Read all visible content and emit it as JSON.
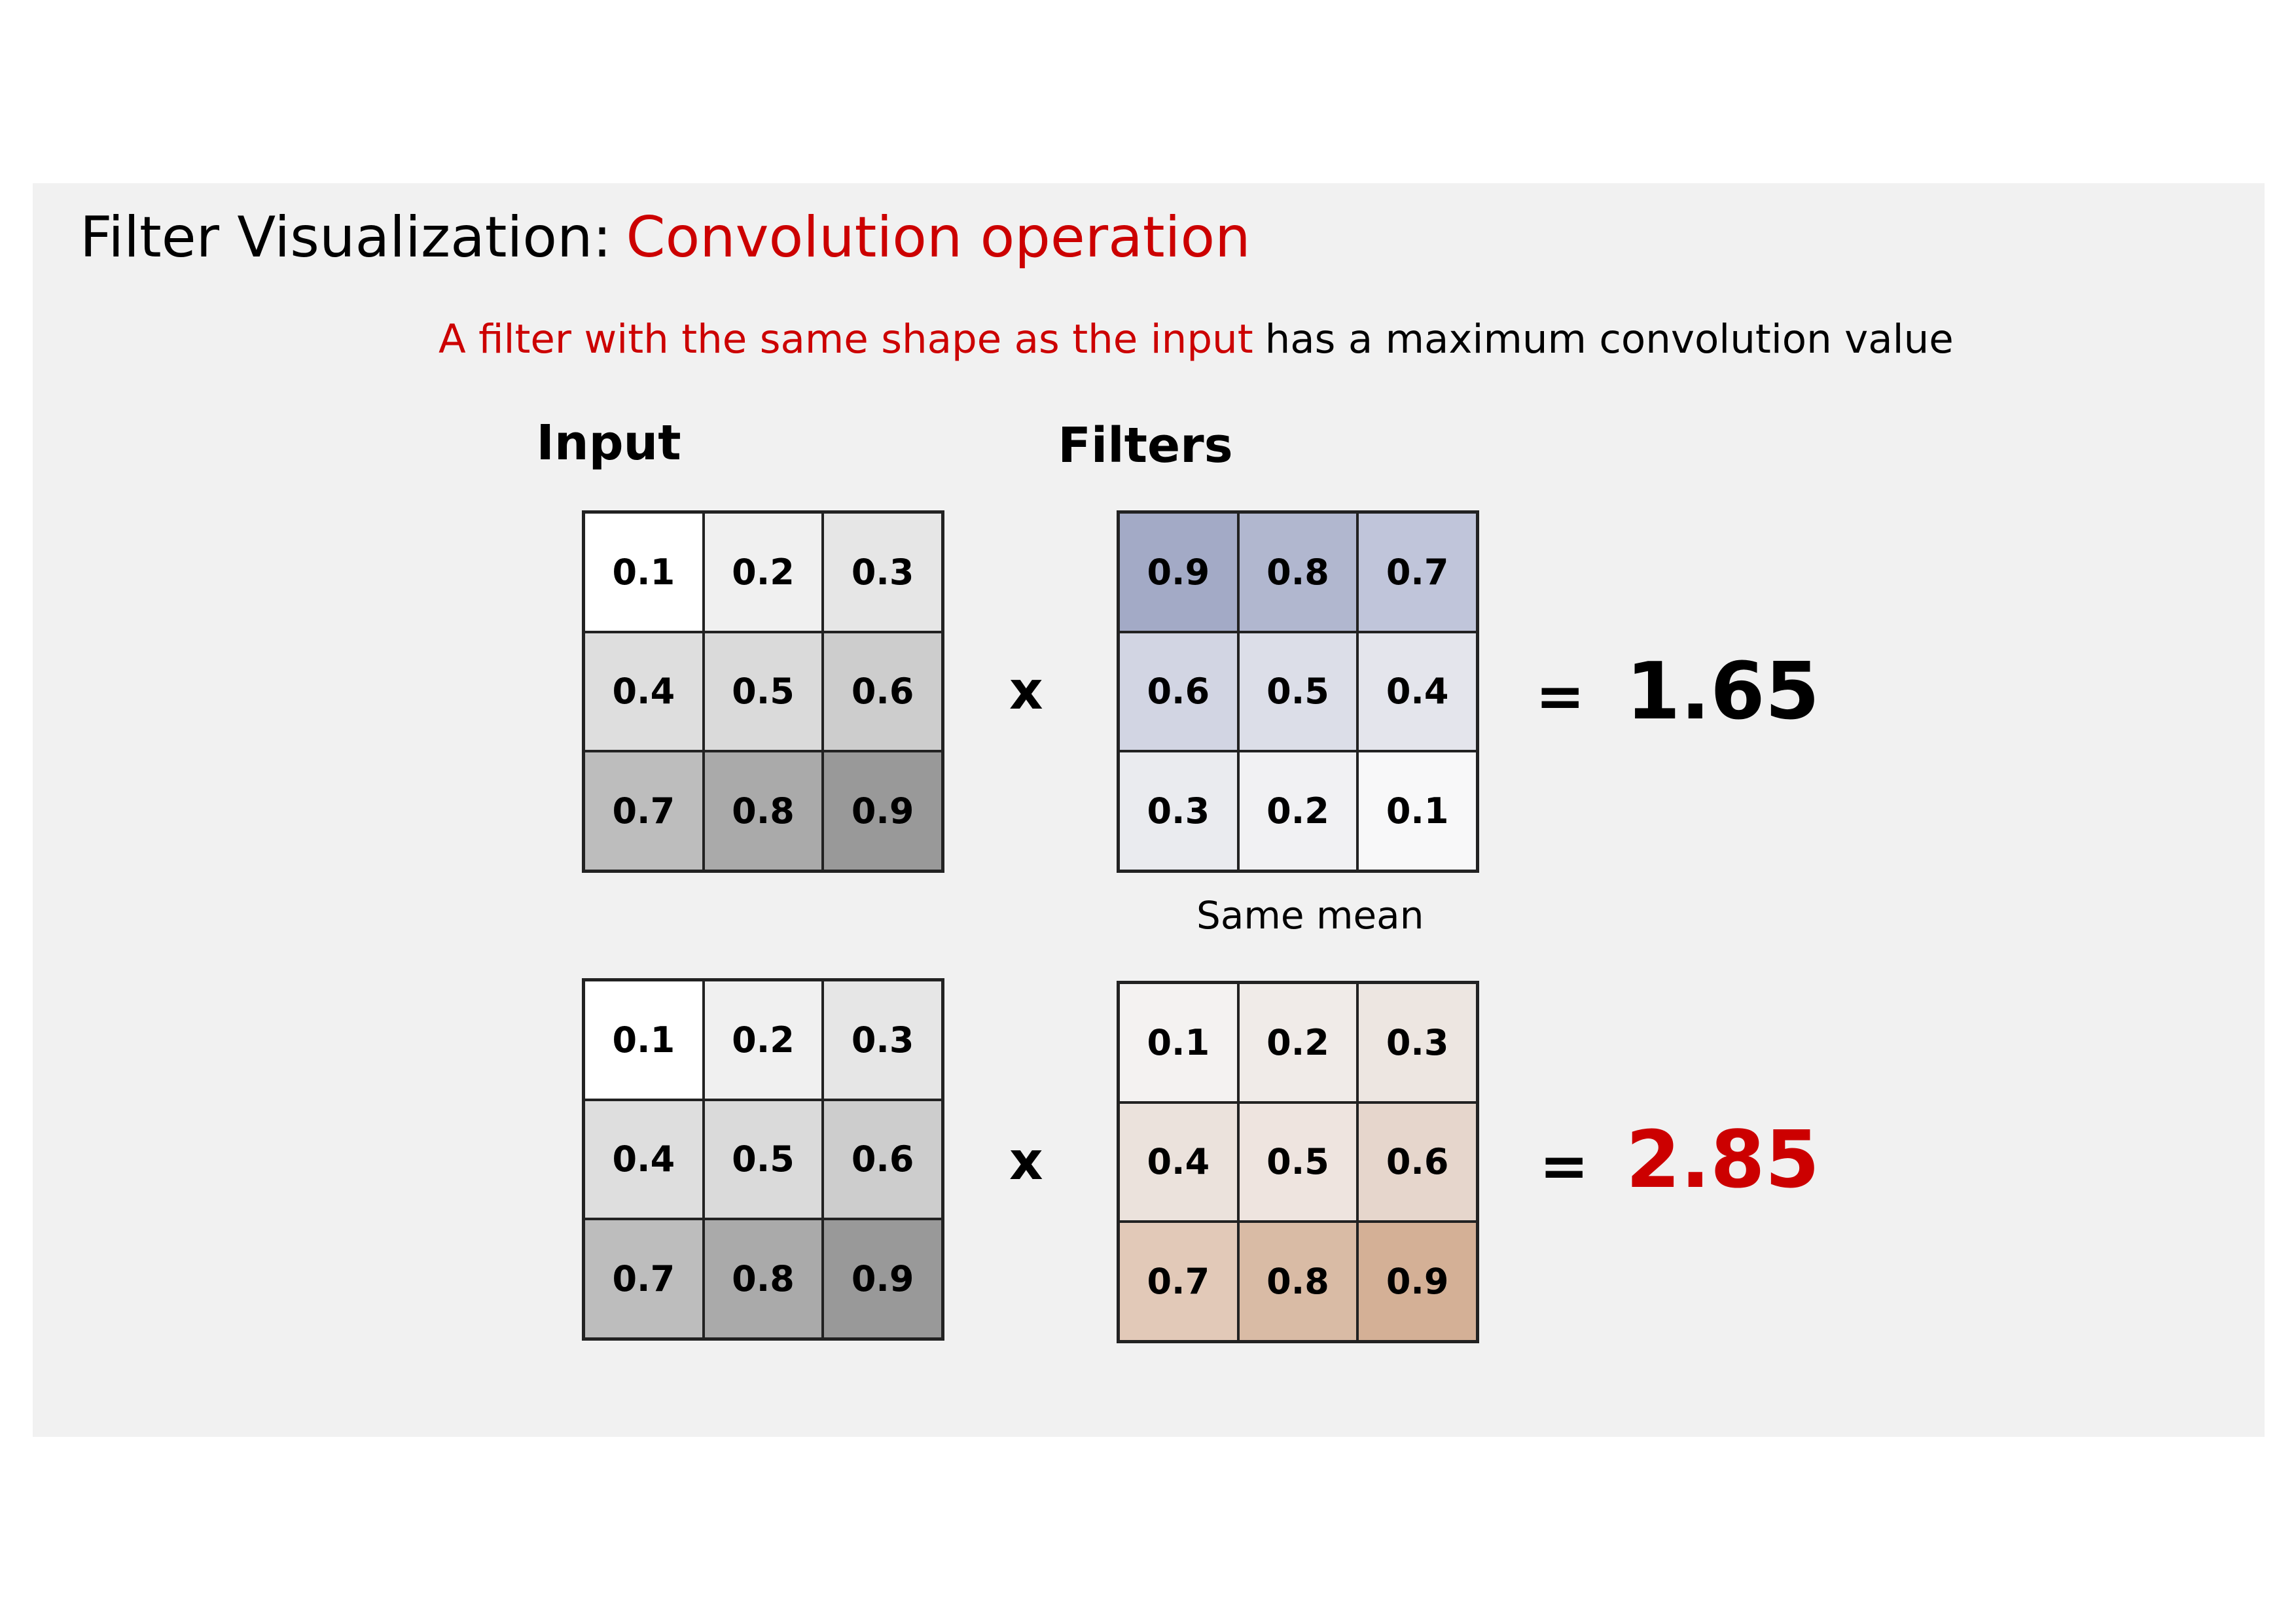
{
  "title": {
    "part1": "Filter Visualization:",
    "part2": "Convolution operation"
  },
  "subtitle": {
    "highlight": "A filter with the same shape as the input",
    "rest": "has a maximum convolution value"
  },
  "headings": {
    "input": "Input",
    "filters": "Filters"
  },
  "operator": "x",
  "equals": "=",
  "between_label": "Same mean",
  "colors": {
    "accent": "#cc0000",
    "panel": "#f1f1f1"
  },
  "rows": [
    {
      "input": {
        "values": [
          "0.1",
          "0.2",
          "0.3",
          "0.4",
          "0.5",
          "0.6",
          "0.7",
          "0.8",
          "0.9"
        ],
        "colors": [
          "#ffffff",
          "#f0f0f0",
          "#e6e6e6",
          "#dedede",
          "#dadada",
          "#cdcdcd",
          "#bdbdbd",
          "#aaaaaa",
          "#999999"
        ]
      },
      "filter": {
        "values": [
          "0.9",
          "0.8",
          "0.7",
          "0.6",
          "0.5",
          "0.4",
          "0.3",
          "0.2",
          "0.1"
        ],
        "colors": [
          "#a3aac6",
          "#b1b7cf",
          "#c0c5da",
          "#d2d5e3",
          "#dcdee8",
          "#e4e5ec",
          "#eaebef",
          "#f1f1f3",
          "#f8f8f9"
        ]
      },
      "result": "1.65",
      "result_color": "#000000"
    },
    {
      "input": {
        "values": [
          "0.1",
          "0.2",
          "0.3",
          "0.4",
          "0.5",
          "0.6",
          "0.7",
          "0.8",
          "0.9"
        ],
        "colors": [
          "#ffffff",
          "#f0f0f0",
          "#e6e6e6",
          "#dedede",
          "#dadada",
          "#cdcdcd",
          "#bdbdbd",
          "#aaaaaa",
          "#999999"
        ]
      },
      "filter": {
        "values": [
          "0.1",
          "0.2",
          "0.3",
          "0.4",
          "0.5",
          "0.6",
          "0.7",
          "0.8",
          "0.9"
        ],
        "colors": [
          "#f4f2f1",
          "#f0ebe8",
          "#ede6e1",
          "#ebe2dc",
          "#eee4df",
          "#e6d6cc",
          "#e2c9b8",
          "#d9bba5",
          "#d4b096"
        ]
      },
      "result": "2.85",
      "result_color": "#cc0000"
    }
  ]
}
